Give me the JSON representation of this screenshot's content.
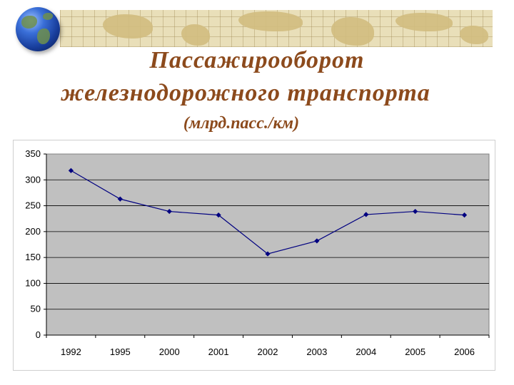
{
  "title": {
    "line1": "Пассажирооборот",
    "line2": "железнодорожного транспорта",
    "unit": "(млрд.пасс./км)"
  },
  "colors": {
    "title": "#8c4a1c",
    "plot_area": "#c0c0c0",
    "series_line": "#000080",
    "banner": "#e9dfb9"
  },
  "icons": {
    "decoration": "globe-icon"
  },
  "chart_data": {
    "type": "line",
    "categories": [
      "1992",
      "1995",
      "2000",
      "2001",
      "2002",
      "2003",
      "2004",
      "2005",
      "2006"
    ],
    "series": [
      {
        "values": [
          318,
          263,
          239,
          232,
          157,
          182,
          233,
          239,
          232
        ]
      }
    ],
    "ylim": [
      0,
      350
    ],
    "yticks": [
      0,
      50,
      100,
      150,
      200,
      250,
      300,
      350
    ],
    "xlabel": "",
    "ylabel": "",
    "grid": "horizontal",
    "legend": "none",
    "marker": "diamond"
  }
}
